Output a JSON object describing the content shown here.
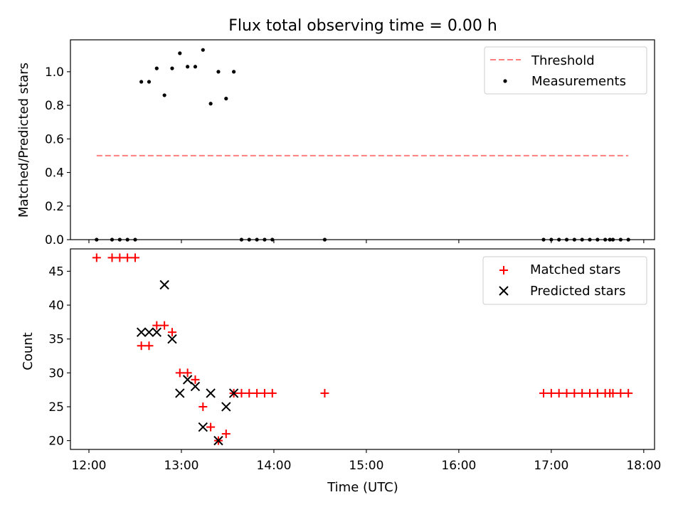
{
  "title": "Flux total observing time = 0.00 h",
  "chart_data": [
    {
      "type": "scatter",
      "ylabel": "Matched/Predicted stars",
      "xlabel": "",
      "ylim": [
        0.0,
        1.19
      ],
      "y_ticks": [
        "0.0",
        "0.2",
        "0.4",
        "0.6",
        "0.8",
        "1.0"
      ],
      "grid": false,
      "legend_position": "top-right",
      "series": [
        {
          "name": "Threshold",
          "kind": "line",
          "style": "dashed",
          "color": "#ff7f7f",
          "points": [
            [
              "12:05",
              0.5
            ],
            [
              "17:50",
              0.5
            ]
          ]
        },
        {
          "name": "Measurements",
          "kind": "dot",
          "color": "#000000",
          "points": [
            [
              "12:05",
              0.0
            ],
            [
              "12:15",
              0.0
            ],
            [
              "12:20",
              0.0
            ],
            [
              "12:25",
              0.0
            ],
            [
              "12:30",
              0.0
            ],
            [
              "12:34",
              0.94
            ],
            [
              "12:39",
              0.94
            ],
            [
              "12:44",
              1.02
            ],
            [
              "12:49",
              0.86
            ],
            [
              "12:54",
              1.02
            ],
            [
              "12:59",
              1.11
            ],
            [
              "13:04",
              1.03
            ],
            [
              "13:09",
              1.03
            ],
            [
              "13:14",
              1.13
            ],
            [
              "13:19",
              0.81
            ],
            [
              "13:24",
              1.0
            ],
            [
              "13:29",
              0.84
            ],
            [
              "13:34",
              1.0
            ],
            [
              "13:39",
              0.0
            ],
            [
              "13:44",
              0.0
            ],
            [
              "13:49",
              0.0
            ],
            [
              "13:54",
              0.0
            ],
            [
              "13:59",
              0.0
            ],
            [
              "14:33",
              0.0
            ],
            [
              "16:55",
              0.0
            ],
            [
              "17:00",
              0.0
            ],
            [
              "17:05",
              0.0
            ],
            [
              "17:10",
              0.0
            ],
            [
              "17:15",
              0.0
            ],
            [
              "17:20",
              0.0
            ],
            [
              "17:25",
              0.0
            ],
            [
              "17:30",
              0.0
            ],
            [
              "17:35",
              0.0
            ],
            [
              "17:38",
              0.0
            ],
            [
              "17:40",
              0.0
            ],
            [
              "17:45",
              0.0
            ],
            [
              "17:50",
              0.0
            ]
          ]
        }
      ]
    },
    {
      "type": "scatter",
      "ylabel": "Count",
      "xlabel": "Time (UTC)",
      "ylim": [
        18.7,
        48.3
      ],
      "y_ticks": [
        "20",
        "25",
        "30",
        "35",
        "40",
        "45"
      ],
      "grid": false,
      "legend_position": "top-right",
      "series": [
        {
          "name": "Matched stars",
          "kind": "plus",
          "color": "#ff0000",
          "points": [
            [
              "12:05",
              47
            ],
            [
              "12:15",
              47
            ],
            [
              "12:20",
              47
            ],
            [
              "12:25",
              47
            ],
            [
              "12:30",
              47
            ],
            [
              "12:34",
              34
            ],
            [
              "12:39",
              34
            ],
            [
              "12:44",
              37
            ],
            [
              "12:49",
              37
            ],
            [
              "12:54",
              36
            ],
            [
              "12:59",
              30
            ],
            [
              "13:04",
              30
            ],
            [
              "13:09",
              29
            ],
            [
              "13:14",
              25
            ],
            [
              "13:19",
              22
            ],
            [
              "13:24",
              20
            ],
            [
              "13:29",
              21
            ],
            [
              "13:34",
              27
            ],
            [
              "13:39",
              27
            ],
            [
              "13:44",
              27
            ],
            [
              "13:49",
              27
            ],
            [
              "13:54",
              27
            ],
            [
              "13:59",
              27
            ],
            [
              "14:33",
              27
            ],
            [
              "16:55",
              27
            ],
            [
              "17:00",
              27
            ],
            [
              "17:05",
              27
            ],
            [
              "17:10",
              27
            ],
            [
              "17:15",
              27
            ],
            [
              "17:20",
              27
            ],
            [
              "17:25",
              27
            ],
            [
              "17:30",
              27
            ],
            [
              "17:35",
              27
            ],
            [
              "17:38",
              27
            ],
            [
              "17:40",
              27
            ],
            [
              "17:45",
              27
            ],
            [
              "17:50",
              27
            ]
          ]
        },
        {
          "name": "Predicted stars",
          "kind": "cross",
          "color": "#000000",
          "points": [
            [
              "12:34",
              36
            ],
            [
              "12:39",
              36
            ],
            [
              "12:44",
              36
            ],
            [
              "12:49",
              43
            ],
            [
              "12:54",
              35
            ],
            [
              "12:59",
              27
            ],
            [
              "13:04",
              29
            ],
            [
              "13:09",
              28
            ],
            [
              "13:14",
              22
            ],
            [
              "13:19",
              27
            ],
            [
              "13:24",
              20
            ],
            [
              "13:29",
              25
            ],
            [
              "13:34",
              27
            ]
          ]
        }
      ]
    }
  ],
  "x_axis": {
    "range": [
      "11:48",
      "18:07"
    ],
    "ticks": [
      "12:00",
      "13:00",
      "14:00",
      "15:00",
      "16:00",
      "17:00",
      "18:00"
    ]
  }
}
